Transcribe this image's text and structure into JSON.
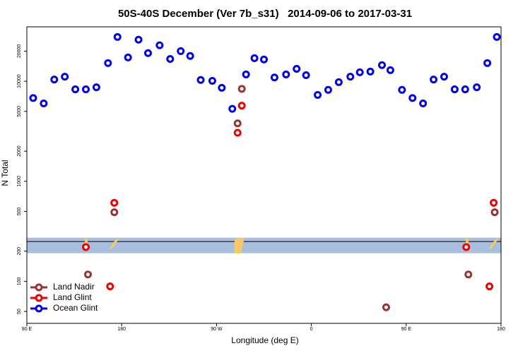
{
  "chart_data": {
    "type": "scatter",
    "title": "50S-40S December (Ver 7b_s31)   2014-09-06 to 2017-03-31",
    "x_label": "Longitude (deg E)",
    "y_label": "N Total",
    "xlim": [
      90,
      540
    ],
    "ylim": [
      38,
      35000
    ],
    "log_y": true,
    "xticks": [
      {
        "value": 90,
        "label": "90 E"
      },
      {
        "value": 180,
        "label": "180"
      },
      {
        "value": 270,
        "label": "90 W"
      },
      {
        "value": 360,
        "label": "0"
      },
      {
        "value": 450,
        "label": "90 E"
      },
      {
        "value": 540,
        "label": "180"
      }
    ],
    "yticks": [
      50,
      100,
      200,
      500,
      1000,
      2000,
      5000,
      10000,
      20000
    ],
    "shaded_band": [
      191,
      273
    ],
    "shaded_band_color": "#a8bedf",
    "hline": 250,
    "legend": "bottom-left",
    "series": [
      {
        "name": "Land Nadir",
        "color": "#993333",
        "x": [
          173,
          148,
          290,
          294,
          431,
          509,
          534
        ],
        "values": [
          490,
          117,
          3790,
          8400,
          55,
          117,
          490
        ]
      },
      {
        "name": "Land Glint",
        "color": "#ee0000",
        "x": [
          173,
          146,
          169,
          290,
          294,
          507,
          529,
          533
        ],
        "values": [
          610,
          220,
          89,
          3060,
          5700,
          220,
          89,
          610
        ]
      },
      {
        "name": "Ocean Glint",
        "color": "#0000ee",
        "x": [
          96,
          106,
          116,
          126,
          136,
          146,
          156,
          167,
          176,
          186,
          196,
          205,
          216,
          226,
          236,
          245,
          255,
          266,
          275,
          285,
          298,
          306,
          315,
          325,
          336,
          346,
          355,
          366,
          376,
          386,
          397,
          406,
          416,
          427,
          435,
          446,
          456,
          466,
          476,
          486,
          496,
          506,
          517,
          527,
          536
        ],
        "values": [
          6800,
          6000,
          10400,
          11100,
          8300,
          8300,
          8700,
          15200,
          27700,
          17300,
          26000,
          19100,
          22900,
          16700,
          20000,
          17900,
          10300,
          10100,
          8600,
          5300,
          11700,
          17000,
          16500,
          10900,
          11700,
          13300,
          11500,
          7300,
          8200,
          9800,
          11100,
          12300,
          12500,
          14500,
          12900,
          8200,
          6800,
          6000,
          10400,
          11100,
          8300,
          8300,
          8700,
          15200,
          27700
        ]
      }
    ]
  }
}
